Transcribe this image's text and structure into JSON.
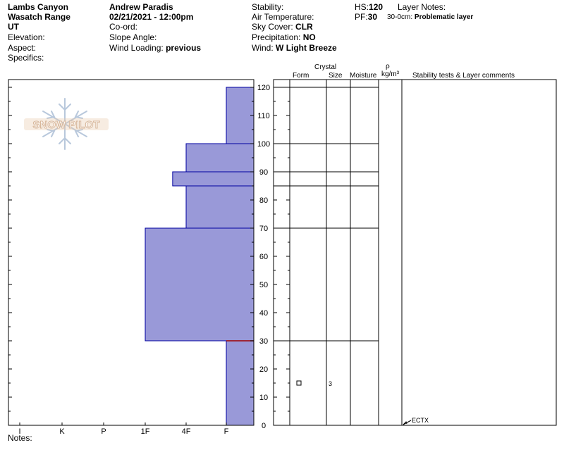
{
  "header": {
    "location": "Lambs Canyon",
    "range": "Wasatch Range",
    "state": "UT",
    "elevation_label": "Elevation:",
    "aspect_label": "Aspect:",
    "specifics_label": "Specifics:",
    "observer": "Andrew Paradis",
    "datetime": "02/21/2021 - 12:00pm",
    "coord_label": "Co-ord:",
    "slope_label": "Slope Angle:",
    "wind_loading_label": "Wind Loading:",
    "wind_loading_value": "previous",
    "stability_label": "Stability:",
    "air_temp_label": "Air Temperature:",
    "sky_cover_label": "Sky Cover:",
    "sky_cover_value": "CLR",
    "precip_label": "Precipitation:",
    "precip_value": "NO",
    "wind_label": "Wind:",
    "wind_value": "W Light Breeze",
    "hs_label": "HS:",
    "hs_value": "120",
    "pf_label": "PF:",
    "pf_value": "30",
    "layer_notes_label": "Layer Notes:",
    "layer_note_range": "30-0cm:",
    "layer_note_text": "Problematic layer"
  },
  "logo_text": "SNOW PILOT",
  "notes_label": "Notes:",
  "columns": {
    "crystal": "Crystal",
    "form": "Form",
    "size": "Size",
    "moisture": "Moisture",
    "rho": "ρ",
    "density_unit": "kg/m³",
    "stability": "Stability tests & Layer comments"
  },
  "chart_data": {
    "type": "bar",
    "orientation": "horizontal-step",
    "x_axis": {
      "categories": [
        "I",
        "K",
        "P",
        "1F",
        "4F",
        "F"
      ],
      "direction": "decreasing-to-right"
    },
    "y_axis": {
      "ticks": [
        0,
        10,
        20,
        30,
        40,
        50,
        60,
        70,
        80,
        90,
        100,
        110,
        120
      ],
      "range": [
        0,
        123
      ],
      "unit": "cm"
    },
    "layers": [
      {
        "bottom": 0,
        "top": 30,
        "hardness": "F"
      },
      {
        "bottom": 30,
        "top": 70,
        "hardness": "1F"
      },
      {
        "bottom": 70,
        "top": 85,
        "hardness": "4F"
      },
      {
        "bottom": 85,
        "top": 90,
        "hardness": "4F-"
      },
      {
        "bottom": 90,
        "top": 100,
        "hardness": "4F"
      },
      {
        "bottom": 100,
        "top": 120,
        "hardness": "F"
      }
    ],
    "hardness_index": {
      "I": 0,
      "K": 1,
      "P": 2,
      "1F": 3,
      "4F-": 3.67,
      "4F": 4,
      "F": 5
    },
    "layer_boundaries": [
      0,
      30,
      70,
      85,
      90,
      100,
      120
    ],
    "crystal_obs": [
      {
        "height": 15,
        "form_symbol": "□",
        "size": "3"
      }
    ],
    "stability_tests": [
      {
        "height": 0,
        "label": "ECTX"
      }
    ],
    "colors": {
      "fill": "#9999d8",
      "stroke": "#0000a0",
      "pf_marker": "#a00000"
    }
  }
}
